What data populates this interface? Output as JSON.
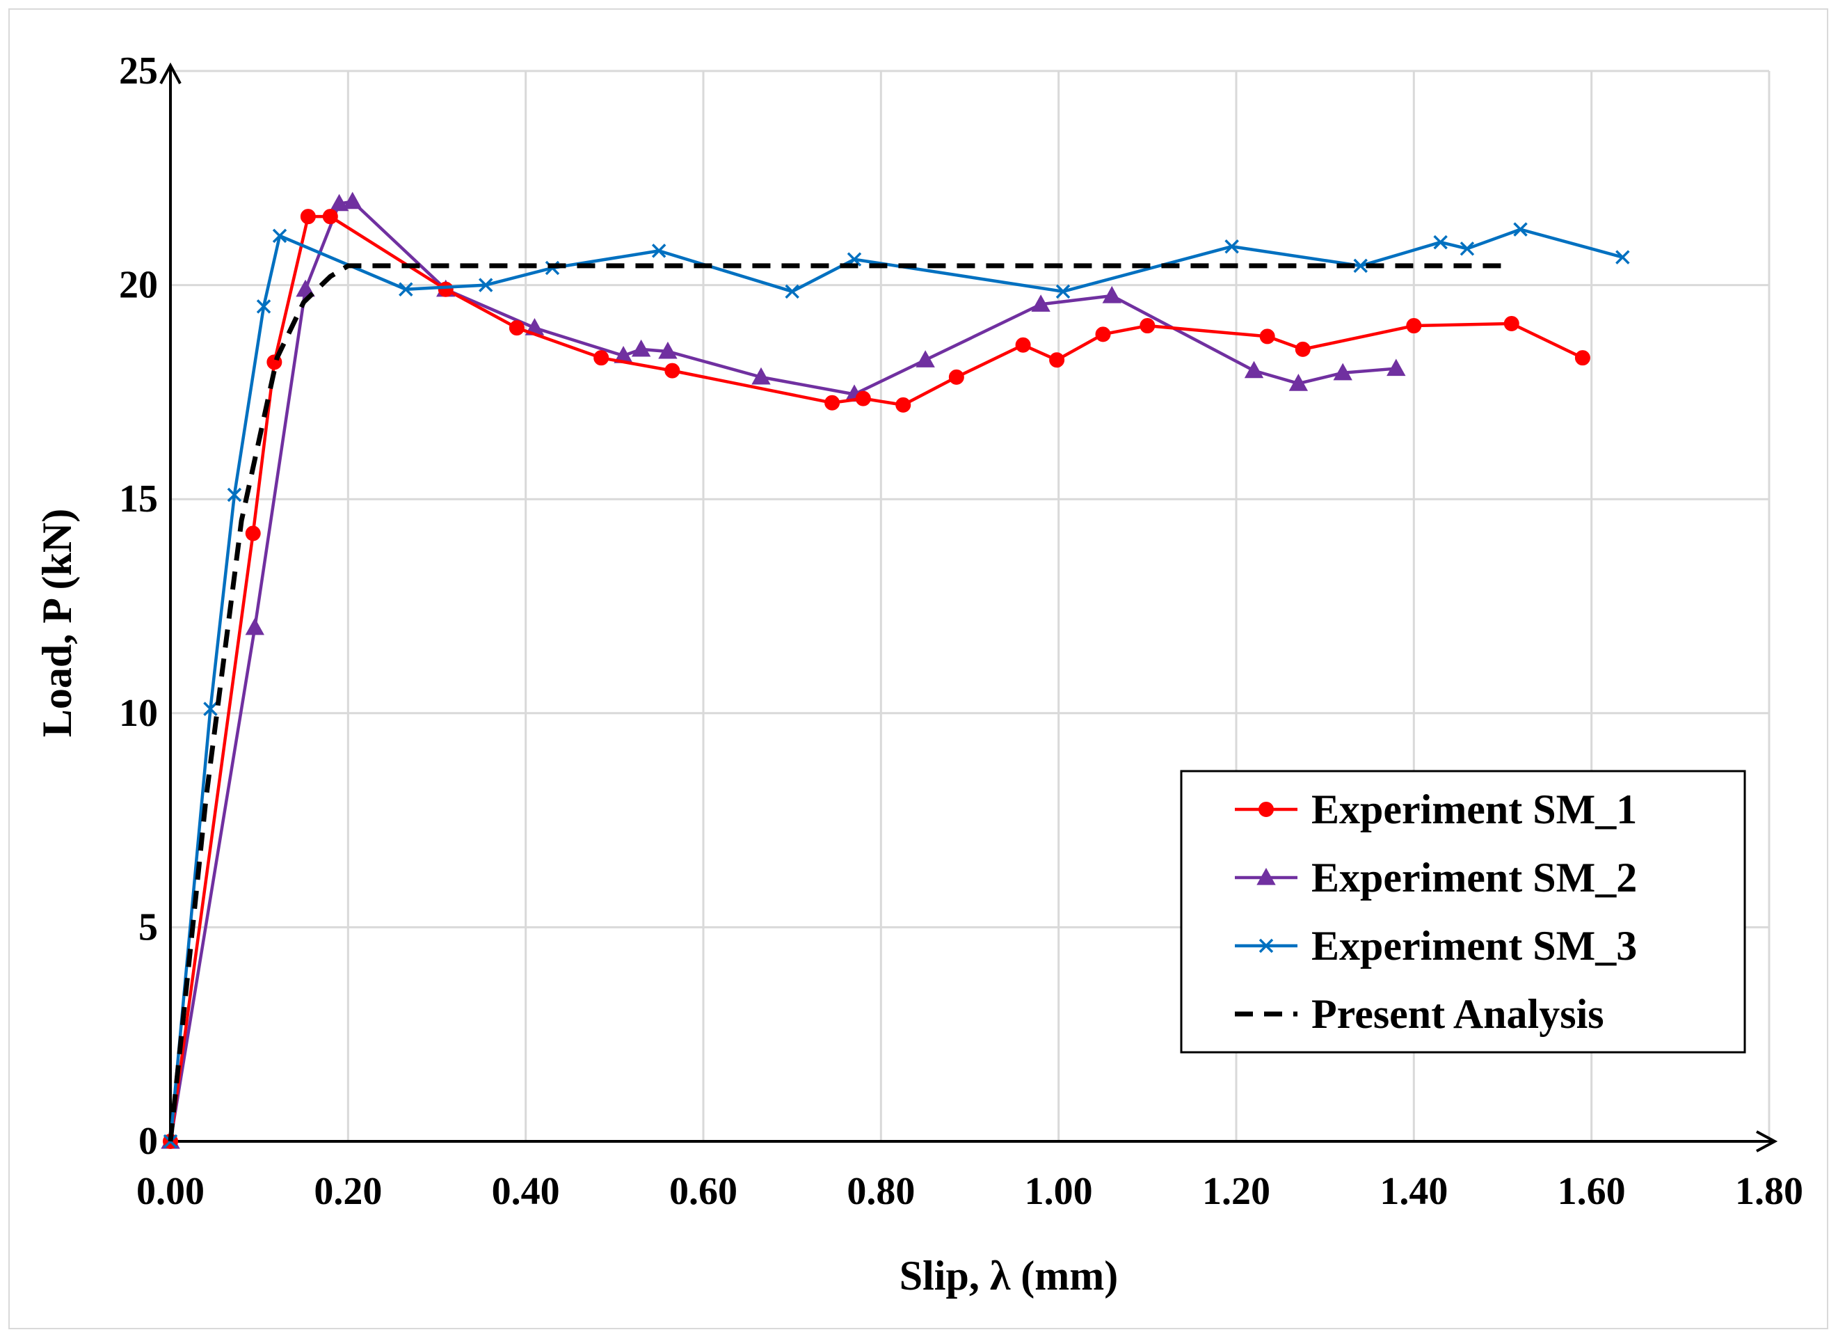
{
  "chart_data": {
    "type": "line",
    "title": "",
    "xlabel": "Slip, λ (mm)",
    "ylabel": "Load, P (kN)",
    "xlim": [
      0,
      1.8
    ],
    "ylim": [
      0,
      25
    ],
    "x_ticks": [
      0,
      0.2,
      0.4,
      0.6,
      0.8,
      1.0,
      1.2,
      1.4,
      1.6,
      1.8
    ],
    "x_tick_labels": [
      "0.00",
      "0.20",
      "0.40",
      "0.60",
      "0.80",
      "1.00",
      "1.20",
      "1.40",
      "1.60",
      "1.80"
    ],
    "y_ticks": [
      0,
      5,
      10,
      15,
      20,
      25
    ],
    "y_tick_labels": [
      "0",
      "5",
      "10",
      "15",
      "20",
      "25"
    ],
    "grid": true,
    "legend_position": "bottom-right",
    "series": [
      {
        "name": "Experiment SM_1",
        "color": "#ff0000",
        "marker": "circle",
        "dashed": false,
        "x": [
          0,
          0.093,
          0.117,
          0.155,
          0.18,
          0.31,
          0.39,
          0.485,
          0.565,
          0.745,
          0.78,
          0.825,
          0.885,
          0.96,
          0.998,
          1.05,
          1.1,
          1.235,
          1.275,
          1.4,
          1.51,
          1.59
        ],
        "y": [
          0,
          14.2,
          18.2,
          21.6,
          21.6,
          19.9,
          19.0,
          18.3,
          18.0,
          17.25,
          17.35,
          17.2,
          17.85,
          18.6,
          18.25,
          18.85,
          19.05,
          18.8,
          18.5,
          19.05,
          19.1,
          18.3
        ]
      },
      {
        "name": "Experiment SM_2",
        "color": "#7030a0",
        "marker": "triangle",
        "dashed": false,
        "x": [
          0,
          0.095,
          0.152,
          0.19,
          0.205,
          0.31,
          0.41,
          0.51,
          0.53,
          0.56,
          0.665,
          0.77,
          0.85,
          0.98,
          1.06,
          1.22,
          1.27,
          1.32,
          1.38
        ],
        "y": [
          0,
          12.0,
          19.9,
          21.9,
          21.95,
          19.9,
          19.0,
          18.35,
          18.5,
          18.45,
          17.85,
          17.45,
          18.25,
          19.55,
          19.75,
          18.0,
          17.7,
          17.95,
          18.05
        ]
      },
      {
        "name": "Experiment SM_3",
        "color": "#0070c0",
        "marker": "x",
        "dashed": false,
        "x": [
          0,
          0.045,
          0.072,
          0.105,
          0.123,
          0.265,
          0.355,
          0.43,
          0.55,
          0.7,
          0.77,
          1.005,
          1.195,
          1.34,
          1.43,
          1.46,
          1.52,
          1.635
        ],
        "y": [
          0,
          10.1,
          15.1,
          19.5,
          21.15,
          19.9,
          20.0,
          20.4,
          20.8,
          19.85,
          20.6,
          19.85,
          20.9,
          20.45,
          21.0,
          20.85,
          21.3,
          20.65
        ]
      },
      {
        "name": "Present Analysis",
        "color": "#000000",
        "marker": "none",
        "dashed": true,
        "x": [
          0,
          0.04,
          0.08,
          0.12,
          0.15,
          0.18,
          0.2,
          0.3,
          0.6,
          1.0,
          1.5
        ],
        "y": [
          0,
          8.0,
          14.5,
          18.3,
          19.6,
          20.2,
          20.45,
          20.45,
          20.45,
          20.45,
          20.45
        ]
      }
    ]
  }
}
